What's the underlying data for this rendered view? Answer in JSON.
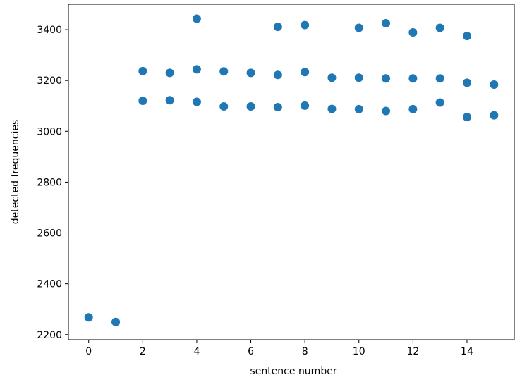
{
  "chart_data": {
    "type": "scatter",
    "title": "",
    "xlabel": "sentence number",
    "ylabel": "detected frequencies",
    "xlim": [
      -0.75,
      15.75
    ],
    "ylim": [
      2180,
      3500
    ],
    "xticks": [
      0,
      2,
      4,
      6,
      8,
      10,
      12,
      14
    ],
    "yticks": [
      2200,
      2400,
      2600,
      2800,
      3000,
      3200,
      3400
    ],
    "grid": false,
    "legend": "none",
    "marker_color": "#1f77b4",
    "series": [
      {
        "points": [
          {
            "x": 0,
            "y": 2268
          },
          {
            "x": 1,
            "y": 2250
          },
          {
            "x": 2,
            "y": 3120
          },
          {
            "x": 2,
            "y": 3237
          },
          {
            "x": 3,
            "y": 3122
          },
          {
            "x": 3,
            "y": 3230
          },
          {
            "x": 4,
            "y": 3116
          },
          {
            "x": 4,
            "y": 3244
          },
          {
            "x": 4,
            "y": 3443
          },
          {
            "x": 5,
            "y": 3098
          },
          {
            "x": 5,
            "y": 3236
          },
          {
            "x": 6,
            "y": 3098
          },
          {
            "x": 6,
            "y": 3230
          },
          {
            "x": 7,
            "y": 3095
          },
          {
            "x": 7,
            "y": 3222
          },
          {
            "x": 7,
            "y": 3411
          },
          {
            "x": 8,
            "y": 3101
          },
          {
            "x": 8,
            "y": 3233
          },
          {
            "x": 8,
            "y": 3418
          },
          {
            "x": 9,
            "y": 3088
          },
          {
            "x": 9,
            "y": 3211
          },
          {
            "x": 10,
            "y": 3087
          },
          {
            "x": 10,
            "y": 3211
          },
          {
            "x": 10,
            "y": 3407
          },
          {
            "x": 11,
            "y": 3080
          },
          {
            "x": 11,
            "y": 3208
          },
          {
            "x": 11,
            "y": 3425
          },
          {
            "x": 12,
            "y": 3087
          },
          {
            "x": 12,
            "y": 3208
          },
          {
            "x": 12,
            "y": 3389
          },
          {
            "x": 13,
            "y": 3113
          },
          {
            "x": 13,
            "y": 3208
          },
          {
            "x": 13,
            "y": 3407
          },
          {
            "x": 14,
            "y": 3056
          },
          {
            "x": 14,
            "y": 3191
          },
          {
            "x": 14,
            "y": 3375
          },
          {
            "x": 15,
            "y": 3063
          },
          {
            "x": 15,
            "y": 3184
          }
        ]
      }
    ]
  }
}
